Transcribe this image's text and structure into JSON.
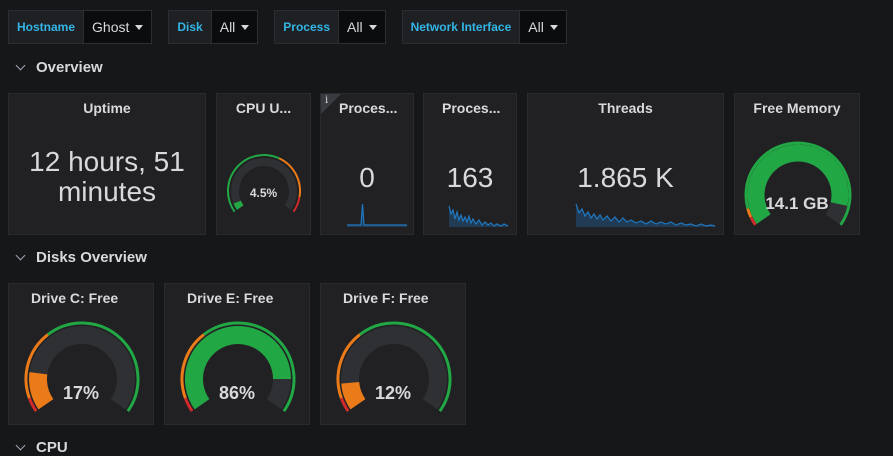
{
  "variables": [
    {
      "label": "Hostname",
      "value": "Ghost"
    },
    {
      "label": "Disk",
      "value": "All"
    },
    {
      "label": "Process",
      "value": "All"
    },
    {
      "label": "Network Interface",
      "value": "All"
    }
  ],
  "rows": {
    "overview": "Overview",
    "disks": "Disks Overview",
    "cpu": "CPU"
  },
  "overview": {
    "uptime": {
      "title": "Uptime",
      "line1": "12 hours, 51",
      "line2": "minutes"
    },
    "cpu": {
      "title": "CPU U...",
      "value_label": "4.5%",
      "value": 4.5
    },
    "processes1": {
      "title": "Proces...",
      "value": "0"
    },
    "processes2": {
      "title": "Proces...",
      "value": "163"
    },
    "threads": {
      "title": "Threads",
      "value": "1.865 K"
    },
    "free_memory": {
      "title": "Free Memory",
      "value_label": "14.1 GB",
      "fill_percent": 91
    }
  },
  "disks": [
    {
      "title": "Drive C: Free",
      "value_label": "17%",
      "value": 17
    },
    {
      "title": "Drive E: Free",
      "value_label": "86%",
      "value": 86
    },
    {
      "title": "Drive F: Free",
      "value_label": "12%",
      "value": 12
    }
  ],
  "colors": {
    "green": "#22a745",
    "orange": "#eb7b18",
    "red": "#d22a2a",
    "accent": "#33b5e5",
    "spark": "#1f78c1"
  }
}
